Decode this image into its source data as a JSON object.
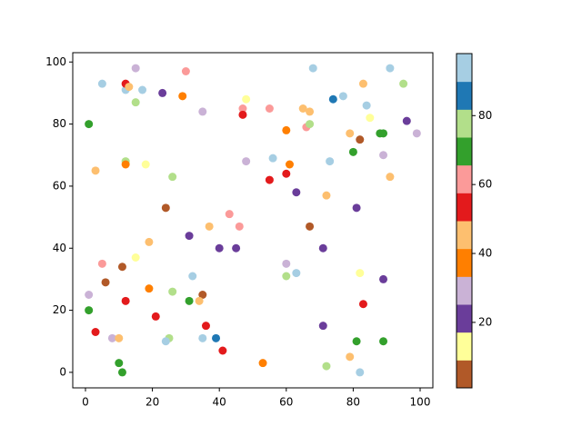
{
  "chart_data": {
    "type": "scatter",
    "x": [
      1,
      5,
      12,
      12,
      13,
      15,
      17,
      15,
      23,
      29,
      30,
      35,
      47,
      47,
      48,
      55,
      60,
      65,
      67,
      66,
      67,
      68,
      74,
      77,
      83,
      84,
      85,
      91,
      95,
      96,
      99,
      79,
      82,
      88,
      89,
      80,
      89,
      91,
      73,
      3,
      12,
      12,
      18,
      26,
      48,
      56,
      60,
      61,
      55,
      63,
      72,
      81,
      24,
      43,
      46,
      37,
      67,
      31,
      19,
      40,
      45,
      71,
      15,
      5,
      11,
      60,
      63,
      60,
      32,
      82,
      89,
      6,
      1,
      19,
      26,
      35,
      31,
      34,
      12,
      83,
      1,
      21,
      36,
      71,
      3,
      8,
      10,
      25,
      24,
      35,
      39,
      81,
      89,
      41,
      79,
      10,
      53,
      72,
      11,
      82
    ],
    "values": [
      80,
      93,
      91,
      93,
      92,
      98,
      91,
      87,
      90,
      89,
      97,
      84,
      85,
      83,
      88,
      85,
      78,
      85,
      84,
      79,
      80,
      98,
      88,
      89,
      93,
      86,
      82,
      98,
      93,
      81,
      77,
      77,
      75,
      77,
      77,
      71,
      70,
      63,
      68,
      65,
      68,
      67,
      67,
      63,
      68,
      69,
      64,
      67,
      62,
      58,
      57,
      53,
      53,
      51,
      47,
      47,
      47,
      44,
      42,
      40,
      40,
      40,
      37,
      35,
      34,
      35,
      32,
      31,
      31,
      32,
      30,
      29,
      25,
      27,
      26,
      25,
      23,
      23,
      23,
      22,
      20,
      18,
      15,
      15,
      13,
      11,
      11,
      11,
      10,
      11,
      11,
      10,
      10,
      7,
      5,
      3,
      3,
      2,
      0,
      0
    ],
    "color_values": [
      69,
      94,
      94,
      53,
      45,
      29,
      94,
      77,
      21,
      37,
      61,
      29,
      61,
      53,
      13,
      61,
      37,
      45,
      45,
      61,
      77,
      94,
      85,
      94,
      45,
      94,
      13,
      94,
      77,
      21,
      29,
      45,
      5,
      69,
      69,
      69,
      29,
      45,
      94,
      45,
      77,
      37,
      13,
      77,
      29,
      94,
      53,
      37,
      53,
      21,
      45,
      21,
      5,
      61,
      61,
      45,
      5,
      21,
      45,
      21,
      21,
      21,
      13,
      61,
      5,
      29,
      94,
      77,
      94,
      13,
      21,
      5,
      29,
      37,
      77,
      5,
      69,
      45,
      53,
      53,
      69,
      53,
      53,
      21,
      53,
      29,
      45,
      77,
      94,
      94,
      85,
      69,
      69,
      53,
      45,
      69,
      37,
      77,
      69,
      94
    ],
    "colormap": [
      "#b15928",
      "#ffff99",
      "#6a3d9a",
      "#cab2d6",
      "#ff7f00",
      "#fdbf6f",
      "#e31a1c",
      "#fb9a99",
      "#33a02c",
      "#b2df8a",
      "#1f78b4",
      "#a6cee3"
    ],
    "clim": [
      1,
      98
    ],
    "cticks": [
      20,
      40,
      60,
      80
    ],
    "xlim": [
      -3.8,
      103.8
    ],
    "ylim": [
      -5,
      103
    ],
    "xticks": [
      0,
      20,
      40,
      60,
      80,
      100
    ],
    "yticks": [
      0,
      20,
      40,
      60,
      80,
      100
    ]
  }
}
